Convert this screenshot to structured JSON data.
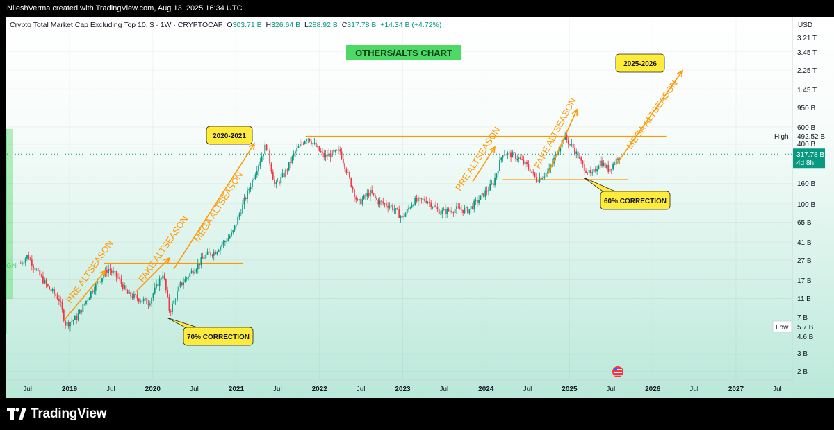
{
  "header": {
    "attribution": "NileshVerma created with TradingView.com, Aug 13, 2025 16:34 UTC"
  },
  "legend": {
    "symbol": "Crypto Total Market Cap Excluding Top 10, $ · 1W · CRYPTOCAP",
    "o_label": "O",
    "o_value": "303.71 B",
    "h_label": "H",
    "h_value": "326.64 B",
    "l_label": "L",
    "l_value": "288.92 B",
    "c_label": "C",
    "c_value": "317.78 B",
    "change": "+14.34 B (+4.72%)"
  },
  "brand": {
    "name": "TradingView"
  },
  "colors": {
    "up": "#089981",
    "down": "#f23645",
    "annotation": "#ff9800",
    "callout_fill": "#ffeb3b",
    "title_fill": "#4cd964",
    "price_tag": "#089981"
  },
  "chart_data": {
    "type": "candlestick",
    "title": "OTHERS/ALTS CHART",
    "currency": "USD",
    "scale": "log",
    "ylim": [
      1800000000.0,
      5300000000000.0
    ],
    "price_axis_labels": [
      "3.21 T",
      "3.45 T",
      "2.25 T",
      "1.45 T",
      "950 B",
      "600 B",
      "400 B",
      "160 B",
      "100 B",
      "65 B",
      "41 B",
      "27 B",
      "17 B",
      "11 B",
      "7 B",
      "4.6 B",
      "3 B",
      "2 B"
    ],
    "high_marker": {
      "label": "High",
      "value": "492.52 B"
    },
    "low_marker": {
      "label": "Low",
      "value": "5.7 B"
    },
    "last_price": {
      "value": "317.78 B",
      "countdown": "4d 8h"
    },
    "time_axis_labels": [
      "Jul",
      "2019",
      "Jul",
      "2020",
      "Jul",
      "2021",
      "Jul",
      "2022",
      "Jul",
      "2023",
      "Jul",
      "2024",
      "Jul",
      "2025",
      "Jul",
      "2026",
      "Jul",
      "2027",
      "Jul"
    ],
    "price_path": [
      [
        "2018-06-01",
        25
      ],
      [
        "2018-07-01",
        30
      ],
      [
        "2018-08-15",
        20
      ],
      [
        "2018-10-01",
        14
      ],
      [
        "2018-11-15",
        11
      ],
      [
        "2018-12-15",
        6
      ],
      [
        "2019-02-01",
        7
      ],
      [
        "2019-04-15",
        14
      ],
      [
        "2019-06-20",
        22
      ],
      [
        "2019-08-01",
        18
      ],
      [
        "2019-09-15",
        12
      ],
      [
        "2019-11-01",
        11
      ],
      [
        "2019-12-15",
        10
      ],
      [
        "2020-02-15",
        20
      ],
      [
        "2020-03-15",
        8
      ],
      [
        "2020-05-01",
        15
      ],
      [
        "2020-07-01",
        22
      ],
      [
        "2020-08-20",
        30
      ],
      [
        "2020-10-01",
        33
      ],
      [
        "2020-12-15",
        50
      ],
      [
        "2021-02-01",
        100
      ],
      [
        "2021-03-15",
        180
      ],
      [
        "2021-05-12",
        400
      ],
      [
        "2021-06-20",
        150
      ],
      [
        "2021-08-01",
        200
      ],
      [
        "2021-09-15",
        330
      ],
      [
        "2021-11-08",
        480
      ],
      [
        "2021-12-15",
        380
      ],
      [
        "2022-01-20",
        300
      ],
      [
        "2022-03-01",
        320
      ],
      [
        "2022-04-01",
        340
      ],
      [
        "2022-05-15",
        170
      ],
      [
        "2022-06-18",
        100
      ],
      [
        "2022-08-10",
        130
      ],
      [
        "2022-09-15",
        105
      ],
      [
        "2022-11-10",
        95
      ],
      [
        "2022-12-30",
        72
      ],
      [
        "2023-02-15",
        105
      ],
      [
        "2023-04-15",
        110
      ],
      [
        "2023-06-15",
        82
      ],
      [
        "2023-08-15",
        88
      ],
      [
        "2023-10-15",
        86
      ],
      [
        "2023-12-15",
        120
      ],
      [
        "2024-02-01",
        160
      ],
      [
        "2024-03-15",
        330
      ],
      [
        "2024-05-15",
        300
      ],
      [
        "2024-07-15",
        220
      ],
      [
        "2024-08-07",
        175
      ],
      [
        "2024-10-01",
        210
      ],
      [
        "2024-12-08",
        480
      ],
      [
        "2025-01-20",
        360
      ],
      [
        "2025-03-01",
        240
      ],
      [
        "2025-04-08",
        190
      ],
      [
        "2025-05-15",
        270
      ],
      [
        "2025-06-22",
        220
      ],
      [
        "2025-08-11",
        318
      ]
    ],
    "annotations": {
      "callouts": [
        "2020-2021",
        "2025-2026",
        "70% CORRECTION",
        "60% CORRECTION"
      ],
      "arrow_labels": [
        "PRE ALTSEASON",
        "FAKE ALTSEASON",
        "MEGA ALTSEASON",
        "PRE ALTSEASON",
        "FAKE ALTSEASON",
        "MEGA ALTSEASON"
      ],
      "left_edge_label": "GN"
    },
    "horizontal_levels": [
      {
        "value": 25,
        "from": "2019-06-01",
        "to": "2021-02-01"
      },
      {
        "value": 480,
        "from": "2021-11-01",
        "to": "2026-03-01"
      },
      {
        "value": 175,
        "from": "2024-03-15",
        "to": "2025-09-15"
      }
    ],
    "grid": true
  }
}
